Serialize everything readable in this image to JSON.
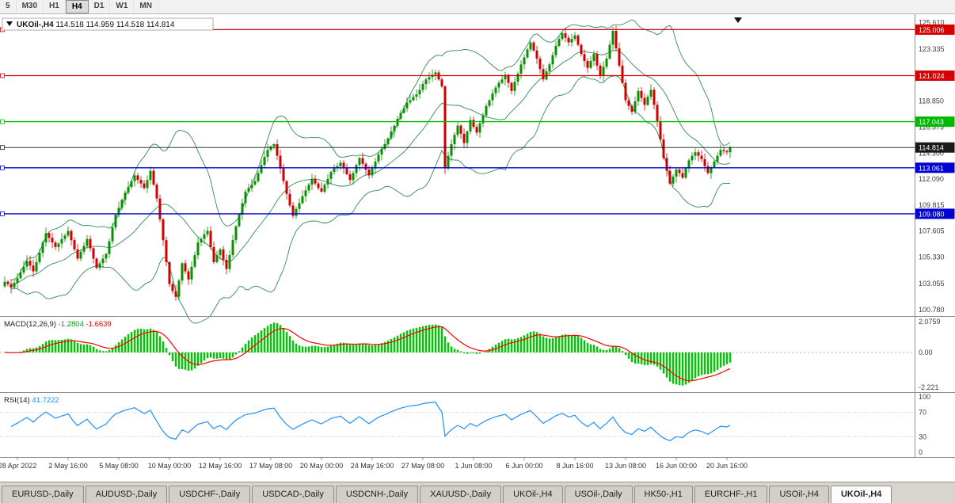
{
  "toolbar": {
    "timeframes": [
      {
        "label": "5",
        "active": false
      },
      {
        "label": "M30",
        "active": false
      },
      {
        "label": "H1",
        "active": false
      },
      {
        "label": "H4",
        "active": true
      },
      {
        "label": "D1",
        "active": false
      },
      {
        "label": "W1",
        "active": false
      },
      {
        "label": "MN",
        "active": false
      }
    ]
  },
  "chart": {
    "title": {
      "symbol": "UKOil-,H4",
      "open": "114.518",
      "high": "114.959",
      "low": "114.518",
      "close": "114.814"
    },
    "price_axis": {
      "ticks": [
        "125.610",
        "123.335",
        "121.060",
        "118.850",
        "116.575",
        "114.300",
        "112.090",
        "109.815",
        "107.605",
        "105.330",
        "103.055",
        "100.780"
      ]
    },
    "hlines": [
      {
        "value": 125.006,
        "label": "125.006",
        "color": "#d60000",
        "style": "solid",
        "width": 1.2
      },
      {
        "value": 121.024,
        "label": "121.024",
        "color": "#d60000",
        "style": "solid",
        "width": 1.2
      },
      {
        "value": 117.043,
        "label": "117.043",
        "color": "#00b800",
        "style": "solid",
        "width": 1.4
      },
      {
        "value": 114.814,
        "label": "114.814",
        "color": "#1a1a1a",
        "style": "solid",
        "width": 0.8,
        "current": true
      },
      {
        "value": 113.061,
        "label": "113.061",
        "color": "#0000d0",
        "style": "solid",
        "width": 1.4
      },
      {
        "value": 109.08,
        "label": "109.080",
        "color": "#0000d0",
        "style": "solid",
        "width": 1.4
      }
    ],
    "time_axis": {
      "labels": [
        "28 Apr 2022",
        "2 May 16:00",
        "5 May 08:00",
        "10 May 00:00",
        "12 May 16:00",
        "17 May 08:00",
        "20 May 00:00",
        "24 May 16:00",
        "27 May 08:00",
        "1 Jun 08:00",
        "6 Jun 00:00",
        "8 Jun 16:00",
        "13 Jun 08:00",
        "16 Jun 00:00",
        "20 Jun 16:00"
      ]
    }
  },
  "indicators": {
    "macd": {
      "label": "MACD(12,26,9)",
      "value_main": "-1.2804",
      "value_signal": "-1.6639",
      "axis": [
        "2.0759",
        "0.00",
        "-2.221"
      ],
      "hist_color": "#00c800",
      "signal_color": "#ff0000"
    },
    "rsi": {
      "label": "RSI(14)",
      "value": "41.7222",
      "axis": [
        "100",
        "70",
        "30",
        "0"
      ],
      "levels": [
        70,
        30
      ],
      "color": "#1e90ff"
    }
  },
  "chart_data": {
    "type": "candlestick",
    "symbol": "UKOil-",
    "timeframe": "H4",
    "title": "UKOil-,H4",
    "y_range": [
      100.78,
      125.61
    ],
    "bull_color": "#089000",
    "bear_color": "#d10000",
    "bollinger_color": "#2e8b57",
    "x_labels": [
      "28 Apr 2022",
      "2 May 16:00",
      "5 May 08:00",
      "10 May 00:00",
      "12 May 16:00",
      "17 May 08:00",
      "20 May 00:00",
      "24 May 16:00",
      "27 May 08:00",
      "1 Jun 08:00",
      "6 Jun 00:00",
      "8 Jun 16:00",
      "13 Jun 08:00",
      "16 Jun 00:00",
      "20 Jun 16:00"
    ],
    "closes": [
      103.2,
      103.0,
      102.7,
      103.1,
      103.5,
      104.0,
      104.5,
      105.0,
      104.6,
      104.1,
      104.9,
      105.7,
      106.6,
      107.4,
      107.0,
      106.6,
      106.2,
      106.5,
      106.9,
      107.2,
      107.6,
      106.8,
      106.0,
      105.2,
      105.8,
      106.3,
      106.9,
      106.1,
      105.2,
      104.4,
      104.8,
      105.2,
      105.6,
      106.7,
      107.9,
      109.0,
      109.6,
      110.3,
      110.9,
      111.4,
      111.9,
      112.4,
      112.0,
      111.7,
      111.3,
      112.0,
      112.8,
      111.6,
      110.4,
      108.6,
      106.8,
      104.9,
      103.0,
      102.4,
      101.9,
      103.3,
      104.8,
      104.1,
      103.4,
      104.5,
      105.5,
      106.6,
      106.9,
      107.3,
      107.6,
      106.2,
      104.9,
      105.5,
      106.0,
      105.1,
      104.3,
      105.5,
      106.8,
      108.0,
      109.0,
      110.0,
      111.0,
      111.3,
      111.6,
      111.9,
      112.6,
      113.3,
      114.0,
      114.6,
      114.9,
      115.1,
      114.1,
      113.0,
      111.9,
      110.8,
      109.8,
      108.9,
      109.5,
      110.0,
      110.6,
      111.1,
      111.6,
      112.1,
      111.7,
      111.3,
      111.0,
      111.6,
      112.1,
      112.7,
      113.0,
      113.2,
      113.5,
      113.0,
      112.5,
      112.0,
      112.6,
      113.3,
      113.9,
      113.4,
      112.9,
      112.4,
      113.0,
      113.6,
      114.2,
      114.7,
      115.1,
      115.6,
      116.2,
      116.7,
      117.3,
      117.8,
      118.2,
      118.7,
      118.9,
      119.2,
      119.4,
      119.8,
      120.3,
      120.7,
      120.9,
      121.1,
      121.3,
      120.7,
      120.1,
      113.0,
      114.1,
      115.1,
      115.9,
      116.7,
      116.0,
      115.2,
      116.2,
      117.2,
      116.6,
      116.1,
      116.9,
      117.6,
      118.4,
      118.9,
      119.5,
      120.0,
      120.4,
      120.7,
      121.1,
      120.4,
      119.7,
      120.5,
      121.2,
      122.0,
      122.6,
      123.3,
      123.9,
      123.2,
      122.5,
      121.6,
      120.7,
      121.4,
      122.0,
      122.8,
      123.6,
      124.2,
      124.7,
      124.3,
      123.9,
      124.2,
      124.5,
      123.7,
      122.9,
      122.3,
      121.7,
      122.3,
      122.9,
      121.9,
      121.0,
      121.8,
      122.5,
      123.7,
      124.9,
      123.4,
      121.9,
      120.4,
      118.9,
      118.4,
      117.9,
      118.8,
      119.7,
      119.1,
      118.5,
      119.2,
      119.8,
      118.5,
      117.1,
      115.5,
      113.9,
      112.8,
      111.7,
      112.3,
      112.9,
      112.6,
      112.2,
      113.0,
      113.7,
      114.1,
      114.4,
      114.1,
      113.8,
      113.2,
      112.6,
      113.1,
      113.6,
      114.1,
      114.6,
      114.5,
      114.4,
      114.81
    ]
  },
  "tabs": [
    {
      "label": "EURUSD-,Daily",
      "active": false
    },
    {
      "label": "AUDUSD-,Daily",
      "active": false
    },
    {
      "label": "USDCHF-,Daily",
      "active": false
    },
    {
      "label": "USDCAD-,Daily",
      "active": false
    },
    {
      "label": "USDCNH-,Daily",
      "active": false
    },
    {
      "label": "XAUUSD-,Daily",
      "active": false
    },
    {
      "label": "UKOil-,H4",
      "active": false
    },
    {
      "label": "USOil-,Daily",
      "active": false
    },
    {
      "label": "HK50-,H1",
      "active": false
    },
    {
      "label": "EURCHF-,H1",
      "active": false
    },
    {
      "label": "USOil-,H4",
      "active": false
    },
    {
      "label": "UKOil-,H4",
      "active": true
    }
  ]
}
